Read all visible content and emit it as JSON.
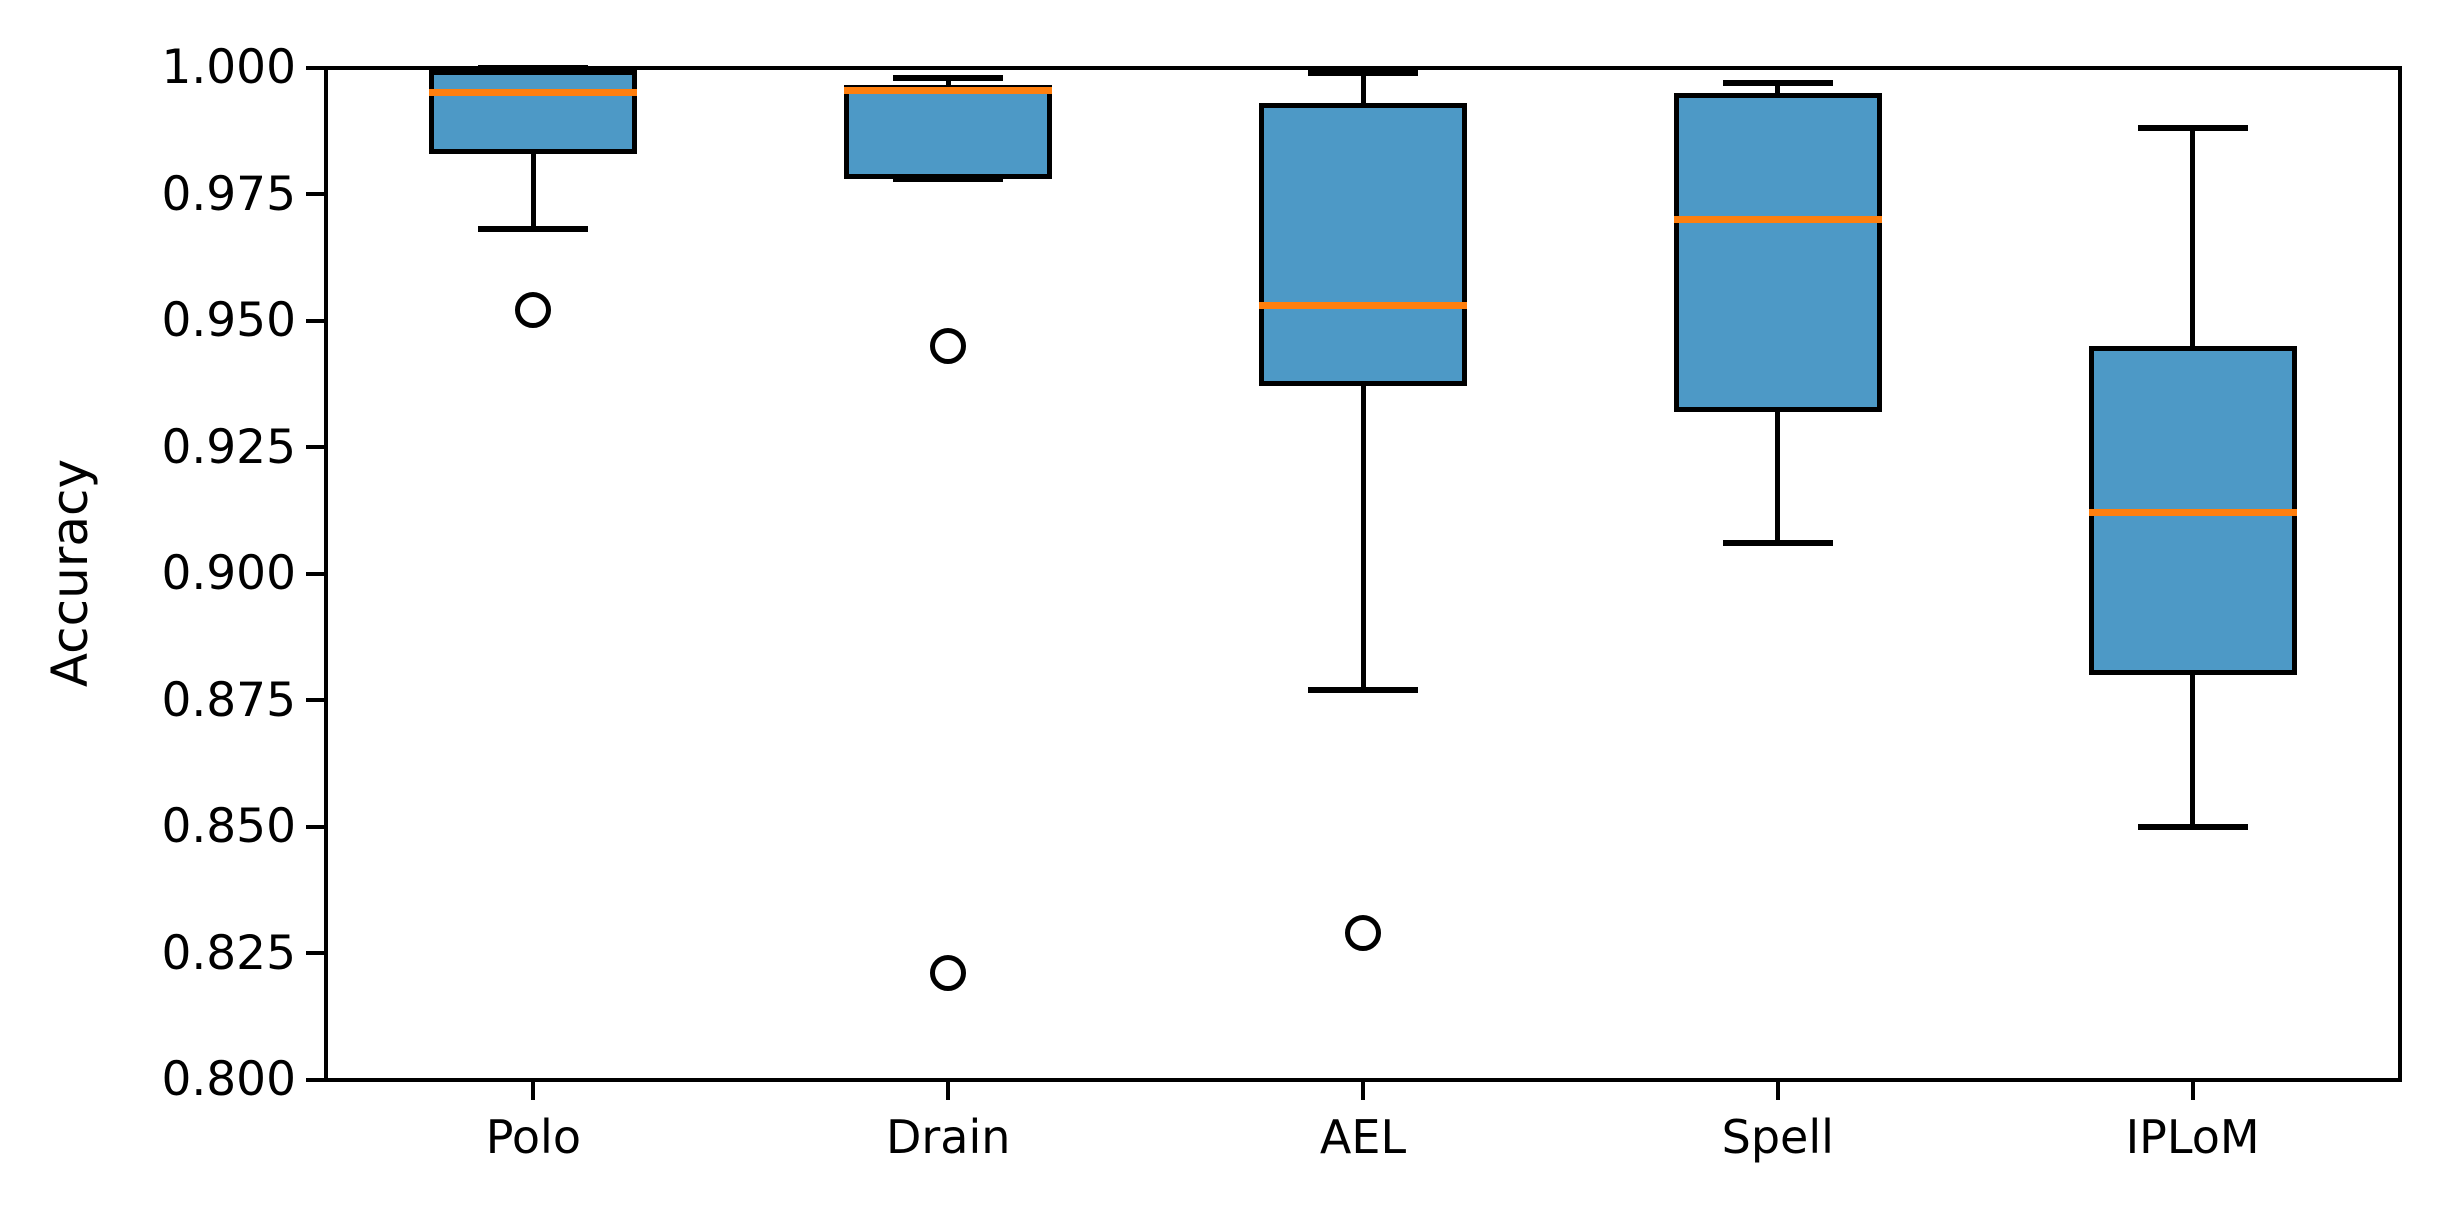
{
  "chart_data": {
    "type": "boxplot",
    "title": "",
    "xlabel": "",
    "ylabel": "Accuracy",
    "ylim": [
      0.8,
      1.0
    ],
    "grid": false,
    "legend": false,
    "ytick_values": [
      1.0,
      0.975,
      0.95,
      0.925,
      0.9,
      0.875,
      0.85,
      0.825,
      0.8
    ],
    "ytick_labels": [
      "1.000",
      "0.975",
      "0.950",
      "0.925",
      "0.900",
      "0.875",
      "0.850",
      "0.825",
      "0.800"
    ],
    "categories": [
      "Polo",
      "Drain",
      "AEL",
      "Spell",
      "IPLoM"
    ],
    "boxes": [
      {
        "label": "Polo",
        "whislo": 0.968,
        "q1": 0.983,
        "med": 0.995,
        "q3": 0.9995,
        "whishi": 1.0,
        "fliers": [
          0.952
        ]
      },
      {
        "label": "Drain",
        "whislo": 0.978,
        "q1": 0.978,
        "med": 0.9955,
        "q3": 0.9965,
        "whishi": 0.998,
        "fliers": [
          0.945,
          0.821
        ]
      },
      {
        "label": "AEL",
        "whislo": 0.877,
        "q1": 0.937,
        "med": 0.953,
        "q3": 0.993,
        "whishi": 0.999,
        "fliers": [
          0.829
        ]
      },
      {
        "label": "Spell",
        "whislo": 0.906,
        "q1": 0.932,
        "med": 0.97,
        "q3": 0.995,
        "whishi": 0.997,
        "fliers": []
      },
      {
        "label": "IPLoM",
        "whislo": 0.85,
        "q1": 0.88,
        "med": 0.912,
        "q3": 0.945,
        "whishi": 0.988,
        "fliers": []
      }
    ],
    "colors": {
      "box_fill": "#4D99C6",
      "median": "#FF7F0E",
      "line": "#000000",
      "background": "#FFFFFF"
    }
  }
}
